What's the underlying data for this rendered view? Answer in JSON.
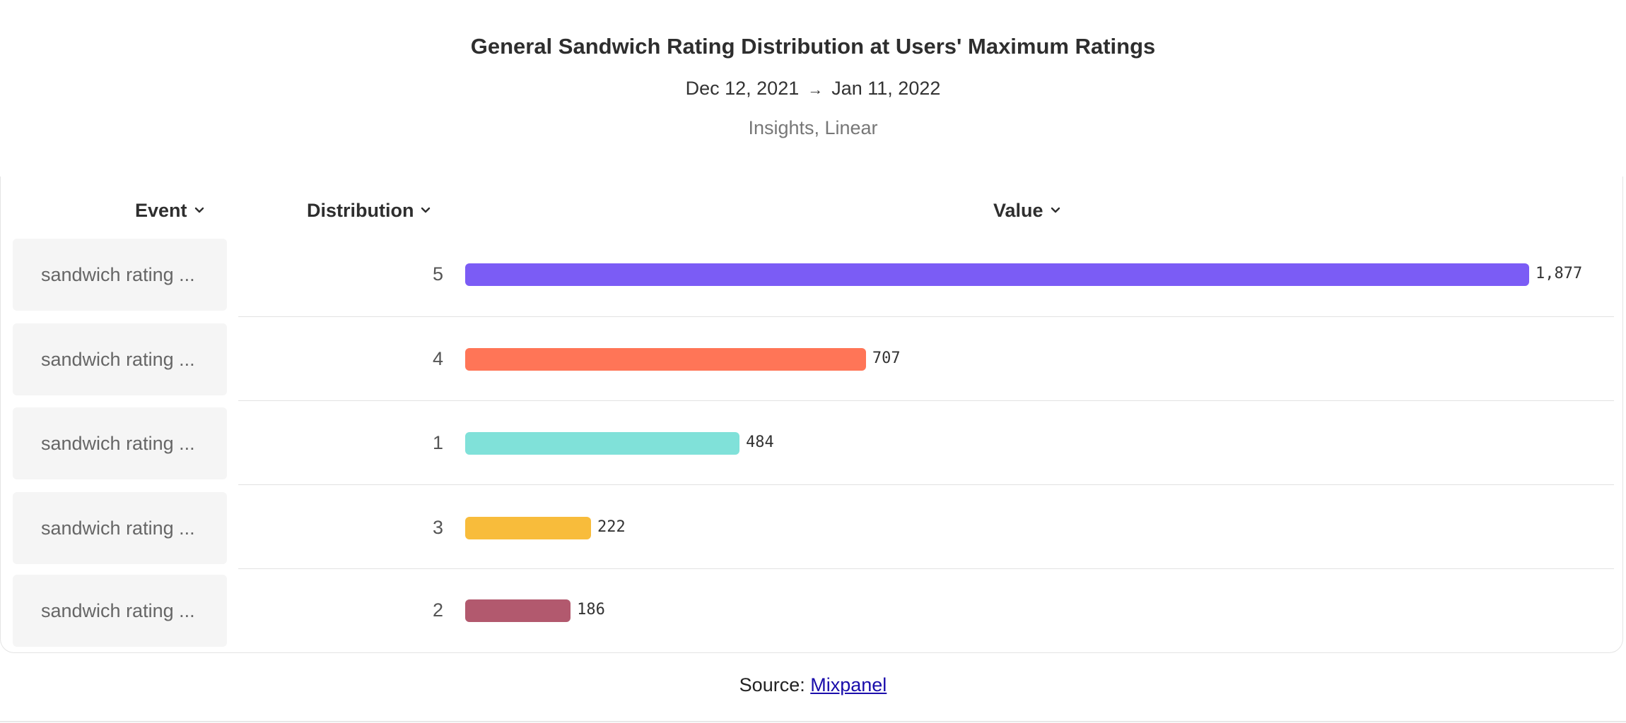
{
  "chart_data": {
    "type": "bar",
    "orientation": "horizontal",
    "title": "General Sandwich Rating Distribution at Users' Maximum Ratings",
    "date_range": {
      "start": "Dec 12, 2021",
      "arrow": "→",
      "end": "Jan 11, 2022"
    },
    "subtitle": "Insights, Linear",
    "columns": {
      "event": "Event",
      "distribution": "Distribution",
      "value": "Value"
    },
    "event_label": "sandwich rating ...",
    "categories": [
      "5",
      "4",
      "1",
      "3",
      "2"
    ],
    "values": [
      1877,
      707,
      484,
      222,
      186
    ],
    "value_labels": [
      "1,877",
      "707",
      "484",
      "222",
      "186"
    ],
    "colors": [
      "#7b5cf5",
      "#ff7557",
      "#80e1d9",
      "#f8bc3b",
      "#b2596e"
    ],
    "xlim": [
      0,
      1877
    ]
  },
  "footer": {
    "prefix": "Source:",
    "link_text": "Mixpanel"
  }
}
